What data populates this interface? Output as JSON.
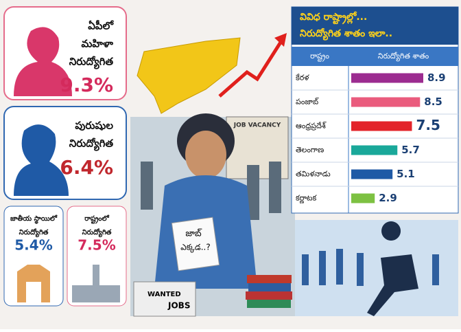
{
  "cards": [
    {
      "lines": [
        "ఏపీలో",
        "మహిళా",
        "నిరుద్యోగిత"
      ],
      "stat": "9.3%"
    },
    {
      "lines": [
        "పురుషుల",
        "నిరుద్యోగిత"
      ],
      "stat": "6.4%"
    },
    {
      "lines": [
        "జాతీయ స్థాయిలో",
        "నిరుద్యోగిత"
      ],
      "stat": "5.4%"
    },
    {
      "lines": [
        "రాష్ట్రంలో",
        "నిరుద్యోగిత"
      ],
      "stat": "7.5%"
    }
  ],
  "illustration": {
    "board": "JOB VACANCY",
    "sign": [
      "జాబ్",
      "ఎక్కడ..?"
    ],
    "paper": [
      "WANTED",
      "JOBS"
    ]
  },
  "chart_data": {
    "type": "bar",
    "title": [
      "వివిధ రాష్ట్రాల్లో...",
      "నిరుద్యోగిత శాతం ఇలా.."
    ],
    "header": [
      "రాష్ట్రం",
      "నిరుద్యోగిత శాతం"
    ],
    "categories": [
      "కేరళ",
      "పంజాబ్",
      "ఆంధ్రప్రదేశ్",
      "తెలంగాణ",
      "తమిళనాడు",
      "కర్ణాటక"
    ],
    "values": [
      8.9,
      8.5,
      7.5,
      5.7,
      5.1,
      2.9
    ],
    "colors": [
      "#9c2c90",
      "#ea5b7d",
      "#e3232a",
      "#1aa89a",
      "#1f5aa6",
      "#7dc142"
    ],
    "highlight": "ఆంధ్రప్రదేశ్"
  }
}
